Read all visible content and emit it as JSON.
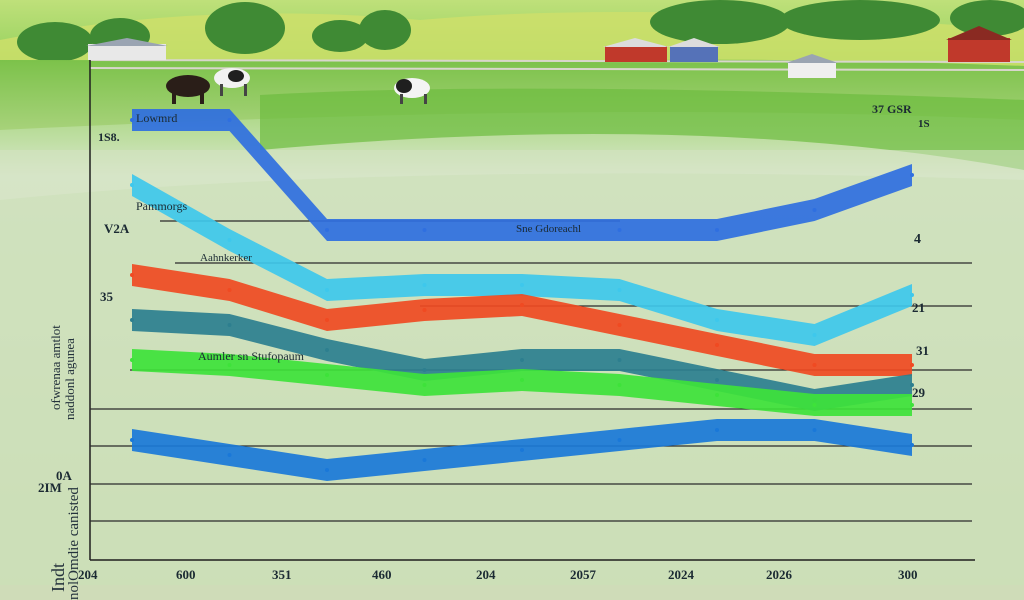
{
  "chart_data": {
    "type": "line",
    "x_ticks": [
      "204",
      "600",
      "351",
      "460",
      "204",
      "2057",
      "2024",
      "2026",
      "300"
    ],
    "y_ticks": [
      "1S8.",
      "V2A",
      "35",
      "0A",
      "2IM"
    ],
    "ylabel_lines": [
      "Indt",
      "nolOmdie canisted",
      "ofwrenaa amtlot",
      "naddonl agunea"
    ],
    "annotations": [
      "Lowmrd",
      "Pammorgs",
      "Sne Gdoreachl",
      "Aahnkerker",
      "Aumler sn Stufopaum"
    ],
    "end_labels": [
      "37 GSR",
      "1S",
      "4",
      "21",
      "31",
      "29"
    ],
    "grid": true,
    "series": [
      {
        "color": "#2f6fe0",
        "x": [
          0,
          1,
          2,
          3,
          4,
          5,
          6,
          7,
          8
        ],
        "values": [
          88,
          88,
          66,
          66,
          66,
          66,
          66,
          70,
          77
        ]
      },
      {
        "color": "#3ec8ec",
        "x": [
          0,
          1,
          2,
          3,
          4,
          5,
          6,
          7,
          8
        ],
        "values": [
          75,
          64,
          54,
          55,
          55,
          54,
          48,
          45,
          53
        ]
      },
      {
        "color": "#f04a22",
        "x": [
          0,
          1,
          2,
          3,
          4,
          5,
          6,
          7,
          8
        ],
        "values": [
          57,
          54,
          48,
          50,
          51,
          47,
          43,
          39,
          39
        ]
      },
      {
        "color": "#2d7f8f",
        "x": [
          0,
          1,
          2,
          3,
          4,
          5,
          6,
          7,
          8
        ],
        "values": [
          48,
          47,
          42,
          38,
          40,
          40,
          36,
          32,
          35
        ]
      },
      {
        "color": "#3ee23a",
        "x": [
          0,
          1,
          2,
          3,
          4,
          5,
          6,
          7,
          8
        ],
        "values": [
          40,
          39,
          37,
          35,
          36,
          35,
          33,
          31,
          31
        ]
      },
      {
        "color": "#1a78d8",
        "x": [
          0,
          1,
          2,
          3,
          4,
          5,
          6,
          7,
          8
        ],
        "values": [
          24,
          21,
          18,
          20,
          22,
          24,
          26,
          26,
          23
        ]
      }
    ]
  }
}
